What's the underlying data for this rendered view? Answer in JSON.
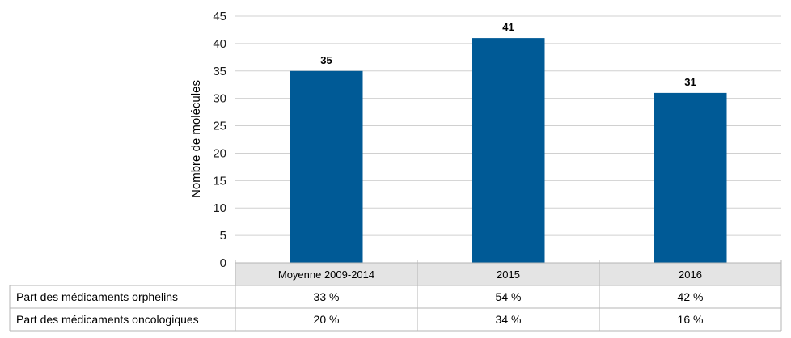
{
  "chart_data": {
    "type": "bar",
    "title": "",
    "xlabel": "",
    "ylabel": "Nombre de molécules",
    "categories": [
      "Moyenne 2009-2014",
      "2015",
      "2016"
    ],
    "values": [
      35,
      41,
      31
    ],
    "data_labels": [
      "35",
      "41",
      "31"
    ],
    "ylim": [
      0,
      45
    ],
    "yticks": [
      0,
      5,
      10,
      15,
      20,
      25,
      30,
      35,
      40,
      45
    ],
    "grid": true,
    "bar_color": "#005a96",
    "table": {
      "rows": [
        {
          "label": "Part des médicaments orphelins",
          "values": [
            "33 %",
            "54 %",
            "42 %"
          ]
        },
        {
          "label": "Part des médicaments oncologiques",
          "values": [
            "20 %",
            "34 %",
            "16 %"
          ]
        }
      ]
    }
  }
}
